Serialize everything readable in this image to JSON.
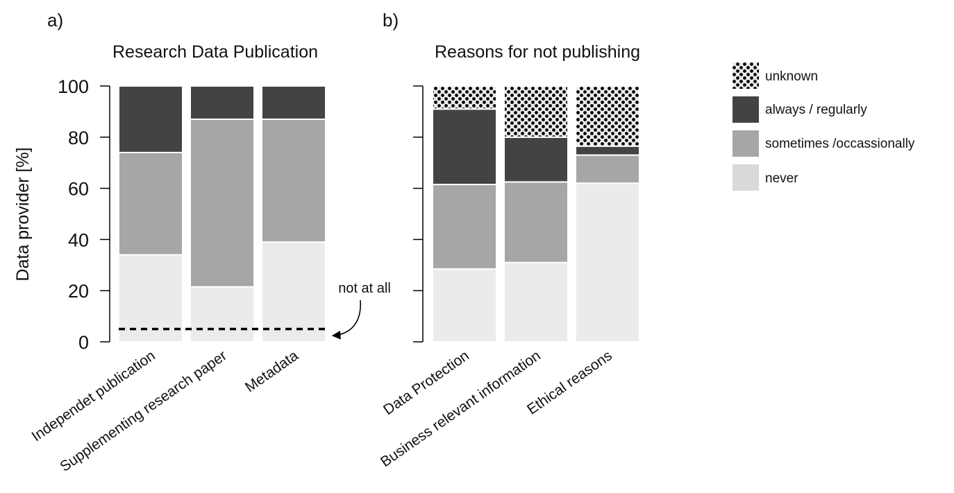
{
  "legend": {
    "items": [
      {
        "key": "unknown",
        "label": "unknown",
        "color": "#ebebeb",
        "pattern": "dots"
      },
      {
        "key": "always",
        "label": "always / regularly",
        "color": "#434343"
      },
      {
        "key": "sometimes",
        "label": "sometimes /occassionally",
        "color": "#a6a6a6"
      },
      {
        "key": "never",
        "label": "never",
        "color": "#d9d9d9"
      }
    ]
  },
  "chart_data": [
    {
      "panel_label": "a)",
      "type": "bar",
      "stacked": true,
      "title": "Research Data Publication",
      "ylabel": "Data provider [%]",
      "ylim": [
        0,
        100
      ],
      "yticks": [
        0,
        20,
        40,
        60,
        80,
        100
      ],
      "categories": [
        "Independet publication",
        "Supplementing research paper",
        "Metadata"
      ],
      "series": [
        {
          "name": "never",
          "values": [
            34,
            21.5,
            39
          ]
        },
        {
          "name": "sometimes /occassionally",
          "values": [
            40,
            65.5,
            48
          ]
        },
        {
          "name": "always / regularly",
          "values": [
            26,
            13,
            13
          ]
        },
        {
          "name": "unknown",
          "values": [
            0,
            0,
            0
          ]
        }
      ],
      "reference_line": {
        "value": 5,
        "style": "dashed",
        "annotation": "not at all"
      }
    },
    {
      "panel_label": "b)",
      "type": "bar",
      "stacked": true,
      "title": "Reasons for not publishing",
      "ylim": [
        0,
        100
      ],
      "yticks": [
        0,
        20,
        40,
        60,
        80,
        100
      ],
      "categories": [
        "Data Protection",
        "Business relevant information",
        "Ethical reasons"
      ],
      "series": [
        {
          "name": "never",
          "values": [
            28.5,
            31,
            62
          ]
        },
        {
          "name": "sometimes /occassionally",
          "values": [
            33,
            31.5,
            11
          ]
        },
        {
          "name": "always / regularly",
          "values": [
            29.5,
            17.5,
            3.5
          ]
        },
        {
          "name": "unknown",
          "values": [
            9,
            20,
            23.5
          ]
        }
      ]
    }
  ]
}
